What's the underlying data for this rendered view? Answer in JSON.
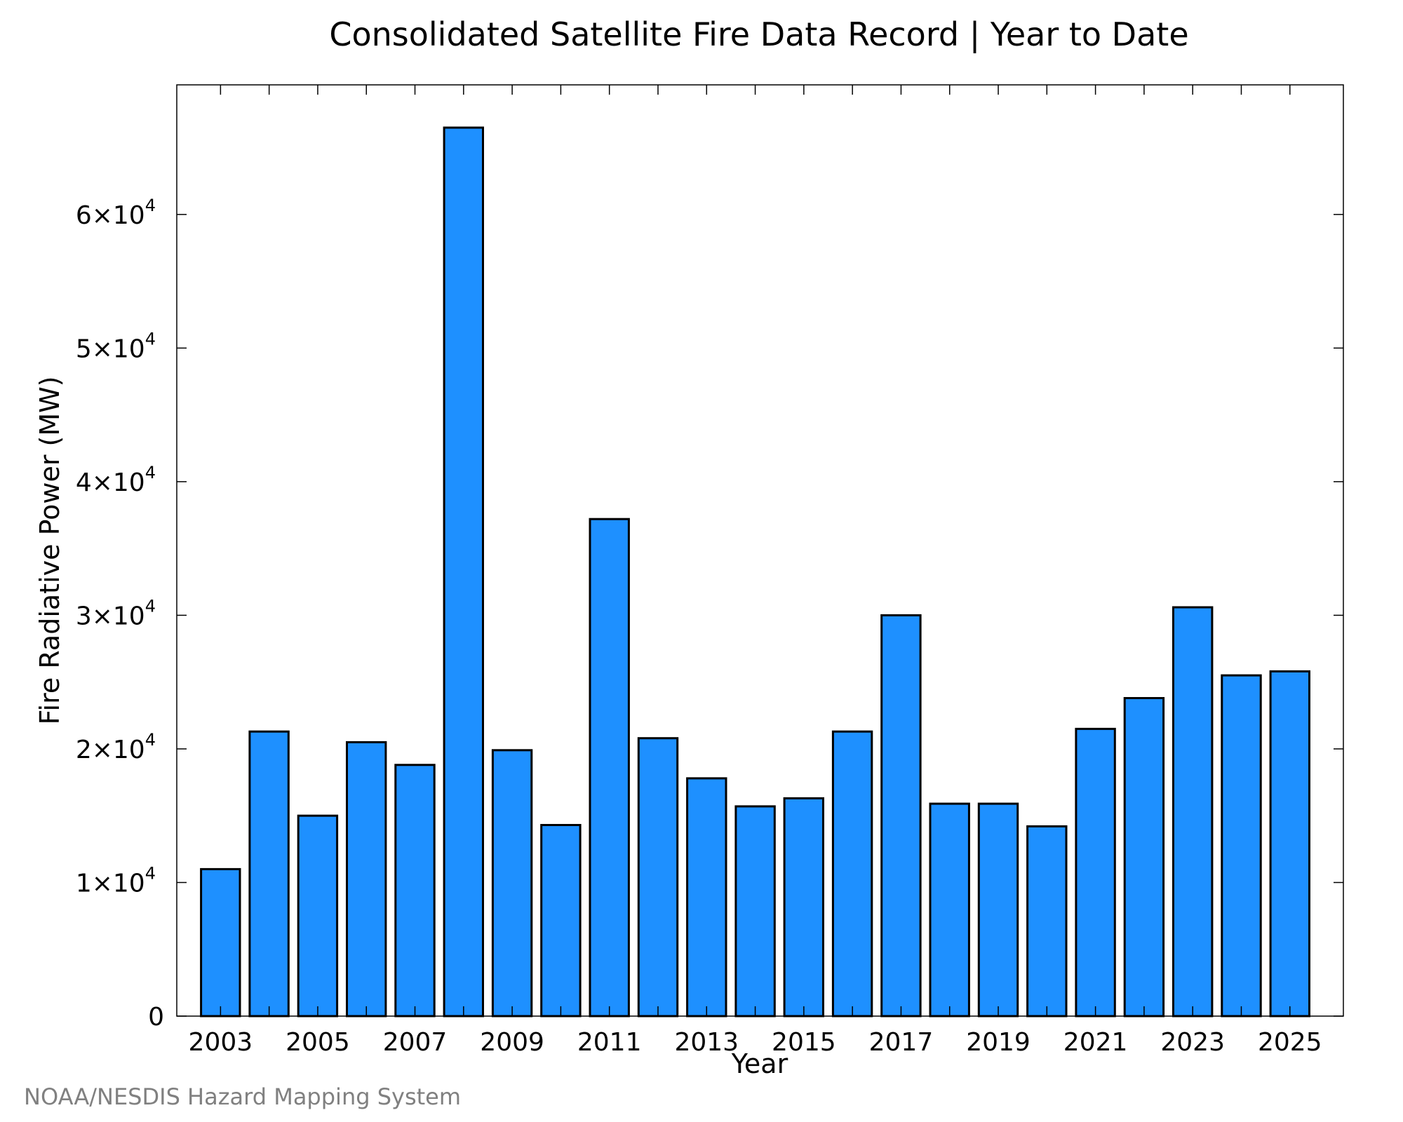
{
  "chart_data": {
    "type": "bar",
    "title": "Consolidated Satellite Fire Data Record | Year to Date",
    "xlabel": "Year",
    "ylabel": "Fire Radiative Power (MW)",
    "categories": [
      2003,
      2004,
      2005,
      2006,
      2007,
      2008,
      2009,
      2010,
      2011,
      2012,
      2013,
      2014,
      2015,
      2016,
      2017,
      2018,
      2019,
      2020,
      2021,
      2022,
      2023,
      2024,
      2025
    ],
    "values": [
      11000,
      21300,
      15000,
      20500,
      18800,
      66500,
      19900,
      14300,
      37200,
      20800,
      17800,
      15700,
      16300,
      21300,
      30000,
      15900,
      15900,
      14200,
      21500,
      23800,
      30600,
      25500,
      25800
    ],
    "xlim": [
      2002.1,
      2026.1
    ],
    "ylim": [
      0,
      69700
    ],
    "x_ticks": [
      2003,
      2005,
      2007,
      2009,
      2011,
      2013,
      2015,
      2017,
      2019,
      2021,
      2023,
      2025
    ],
    "y_ticks": [
      {
        "value": 0,
        "mantissa": "0",
        "exponent": ""
      },
      {
        "value": 10000,
        "mantissa": "1×10",
        "exponent": "4"
      },
      {
        "value": 20000,
        "mantissa": "2×10",
        "exponent": "4"
      },
      {
        "value": 30000,
        "mantissa": "3×10",
        "exponent": "4"
      },
      {
        "value": 40000,
        "mantissa": "4×10",
        "exponent": "4"
      },
      {
        "value": 50000,
        "mantissa": "5×10",
        "exponent": "4"
      },
      {
        "value": 60000,
        "mantissa": "6×10",
        "exponent": "4"
      }
    ],
    "bar_width_years": 0.8,
    "bar_color": "#1e90ff",
    "grid": false,
    "legend": "none"
  },
  "credit": "NOAA/NESDIS Hazard Mapping System"
}
